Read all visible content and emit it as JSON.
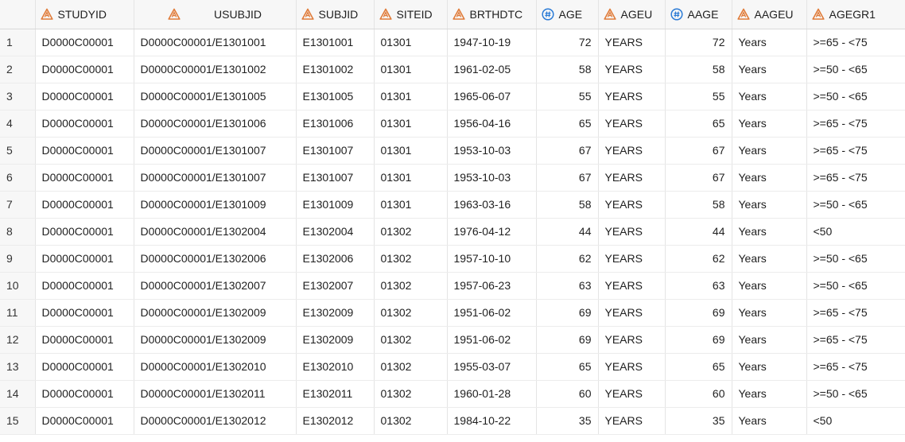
{
  "colors": {
    "char_icon": "#e07b39",
    "num_icon": "#2b7bd6",
    "header_bg": "#f7f7f7",
    "grid_line": "#e4e4e4"
  },
  "columns": [
    {
      "label": "STUDYID",
      "icon": "character-variable-icon"
    },
    {
      "label": "USUBJID",
      "icon": "character-variable-icon"
    },
    {
      "label": "SUBJID",
      "icon": "character-variable-icon"
    },
    {
      "label": "SITEID",
      "icon": "character-variable-icon"
    },
    {
      "label": "BRTHDTC",
      "icon": "character-variable-icon"
    },
    {
      "label": "AGE",
      "icon": "numeric-variable-icon"
    },
    {
      "label": "AGEU",
      "icon": "character-variable-icon"
    },
    {
      "label": "AAGE",
      "icon": "numeric-variable-icon"
    },
    {
      "label": "AAGEU",
      "icon": "character-variable-icon"
    },
    {
      "label": "AGEGR1",
      "icon": "character-variable-icon"
    }
  ],
  "rows": [
    {
      "n": "1",
      "cells": [
        "D0000C00001",
        "D0000C00001/E1301001",
        "E1301001",
        "01301",
        "1947-10-19",
        "72",
        "YEARS",
        "72",
        "Years",
        ">=65 - <75"
      ]
    },
    {
      "n": "2",
      "cells": [
        "D0000C00001",
        "D0000C00001/E1301002",
        "E1301002",
        "01301",
        "1961-02-05",
        "58",
        "YEARS",
        "58",
        "Years",
        ">=50 - <65"
      ]
    },
    {
      "n": "3",
      "cells": [
        "D0000C00001",
        "D0000C00001/E1301005",
        "E1301005",
        "01301",
        "1965-06-07",
        "55",
        "YEARS",
        "55",
        "Years",
        ">=50 - <65"
      ]
    },
    {
      "n": "4",
      "cells": [
        "D0000C00001",
        "D0000C00001/E1301006",
        "E1301006",
        "01301",
        "1956-04-16",
        "65",
        "YEARS",
        "65",
        "Years",
        ">=65 - <75"
      ]
    },
    {
      "n": "5",
      "cells": [
        "D0000C00001",
        "D0000C00001/E1301007",
        "E1301007",
        "01301",
        "1953-10-03",
        "67",
        "YEARS",
        "67",
        "Years",
        ">=65 - <75"
      ]
    },
    {
      "n": "6",
      "cells": [
        "D0000C00001",
        "D0000C00001/E1301007",
        "E1301007",
        "01301",
        "1953-10-03",
        "67",
        "YEARS",
        "67",
        "Years",
        ">=65 - <75"
      ]
    },
    {
      "n": "7",
      "cells": [
        "D0000C00001",
        "D0000C00001/E1301009",
        "E1301009",
        "01301",
        "1963-03-16",
        "58",
        "YEARS",
        "58",
        "Years",
        ">=50 - <65"
      ]
    },
    {
      "n": "8",
      "cells": [
        "D0000C00001",
        "D0000C00001/E1302004",
        "E1302004",
        "01302",
        "1976-04-12",
        "44",
        "YEARS",
        "44",
        "Years",
        "<50"
      ]
    },
    {
      "n": "9",
      "cells": [
        "D0000C00001",
        "D0000C00001/E1302006",
        "E1302006",
        "01302",
        "1957-10-10",
        "62",
        "YEARS",
        "62",
        "Years",
        ">=50 - <65"
      ]
    },
    {
      "n": "10",
      "cells": [
        "D0000C00001",
        "D0000C00001/E1302007",
        "E1302007",
        "01302",
        "1957-06-23",
        "63",
        "YEARS",
        "63",
        "Years",
        ">=50 - <65"
      ]
    },
    {
      "n": "11",
      "cells": [
        "D0000C00001",
        "D0000C00001/E1302009",
        "E1302009",
        "01302",
        "1951-06-02",
        "69",
        "YEARS",
        "69",
        "Years",
        ">=65 - <75"
      ]
    },
    {
      "n": "12",
      "cells": [
        "D0000C00001",
        "D0000C00001/E1302009",
        "E1302009",
        "01302",
        "1951-06-02",
        "69",
        "YEARS",
        "69",
        "Years",
        ">=65 - <75"
      ]
    },
    {
      "n": "13",
      "cells": [
        "D0000C00001",
        "D0000C00001/E1302010",
        "E1302010",
        "01302",
        "1955-03-07",
        "65",
        "YEARS",
        "65",
        "Years",
        ">=65 - <75"
      ]
    },
    {
      "n": "14",
      "cells": [
        "D0000C00001",
        "D0000C00001/E1302011",
        "E1302011",
        "01302",
        "1960-01-28",
        "60",
        "YEARS",
        "60",
        "Years",
        ">=50 - <65"
      ]
    },
    {
      "n": "15",
      "cells": [
        "D0000C00001",
        "D0000C00001/E1302012",
        "E1302012",
        "01302",
        "1984-10-22",
        "35",
        "YEARS",
        "35",
        "Years",
        "<50"
      ]
    }
  ]
}
